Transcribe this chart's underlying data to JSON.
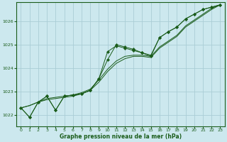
{
  "title": "Graphe pression niveau de la mer (hPa)",
  "background_color": "#cce8ee",
  "grid_color": "#aacdd6",
  "line_color": "#1a5c1a",
  "marker_color": "#1a5c1a",
  "xlim": [
    -0.5,
    23.5
  ],
  "ylim": [
    1021.5,
    1026.8
  ],
  "xticks": [
    0,
    1,
    2,
    3,
    4,
    5,
    6,
    7,
    8,
    9,
    10,
    11,
    12,
    13,
    14,
    15,
    16,
    17,
    18,
    19,
    20,
    21,
    22,
    23
  ],
  "yticks": [
    1022,
    1023,
    1024,
    1025,
    1026
  ],
  "line1_x": [
    0,
    1,
    2,
    3,
    4,
    5,
    6,
    7,
    8,
    9,
    10,
    11,
    12,
    13,
    14,
    15,
    16,
    17,
    18,
    19,
    20,
    21,
    22,
    23
  ],
  "line1": [
    1022.3,
    1021.9,
    1022.55,
    1022.8,
    1022.2,
    1022.8,
    1022.85,
    1022.9,
    1023.05,
    1023.55,
    1024.7,
    1024.95,
    1024.85,
    1024.75,
    1024.65,
    1024.5,
    1025.3,
    1025.55,
    1025.75,
    1026.1,
    1026.3,
    1026.5,
    1026.6,
    1026.7
  ],
  "line2_x": [
    0,
    1,
    2,
    3,
    4,
    5,
    6,
    7,
    8,
    9,
    10,
    11,
    12,
    13,
    14,
    15,
    16,
    17,
    18,
    19,
    20,
    21,
    22,
    23
  ],
  "line2": [
    1022.3,
    1022.4,
    1022.55,
    1022.65,
    1022.7,
    1022.75,
    1022.8,
    1022.9,
    1023.05,
    1023.4,
    1023.85,
    1024.2,
    1024.4,
    1024.5,
    1024.5,
    1024.45,
    1024.85,
    1025.1,
    1025.35,
    1025.75,
    1026.0,
    1026.25,
    1026.5,
    1026.7
  ],
  "line3_x": [
    0,
    1,
    2,
    3,
    4,
    5,
    6,
    7,
    8,
    9,
    10,
    11,
    12,
    13,
    14,
    15,
    16,
    17,
    18,
    19,
    20,
    21,
    22,
    23
  ],
  "line3": [
    1022.3,
    1022.4,
    1022.55,
    1022.7,
    1022.75,
    1022.8,
    1022.85,
    1022.95,
    1023.1,
    1023.5,
    1023.95,
    1024.3,
    1024.5,
    1024.55,
    1024.55,
    1024.5,
    1024.9,
    1025.15,
    1025.4,
    1025.8,
    1026.05,
    1026.3,
    1026.55,
    1026.7
  ],
  "line4_x": [
    0,
    1,
    2,
    3,
    4,
    5,
    6,
    7,
    8,
    9,
    10,
    11,
    12,
    13,
    14,
    15,
    16,
    17,
    18,
    19,
    20,
    21,
    22,
    23
  ],
  "line4": [
    1022.3,
    1021.9,
    1022.55,
    1022.8,
    1022.2,
    1022.8,
    1022.85,
    1022.9,
    1023.05,
    1023.55,
    1024.35,
    1025.0,
    1024.9,
    1024.8,
    1024.65,
    1024.55,
    1025.3,
    1025.55,
    1025.75,
    1026.1,
    1026.3,
    1026.5,
    1026.6,
    1026.7
  ]
}
